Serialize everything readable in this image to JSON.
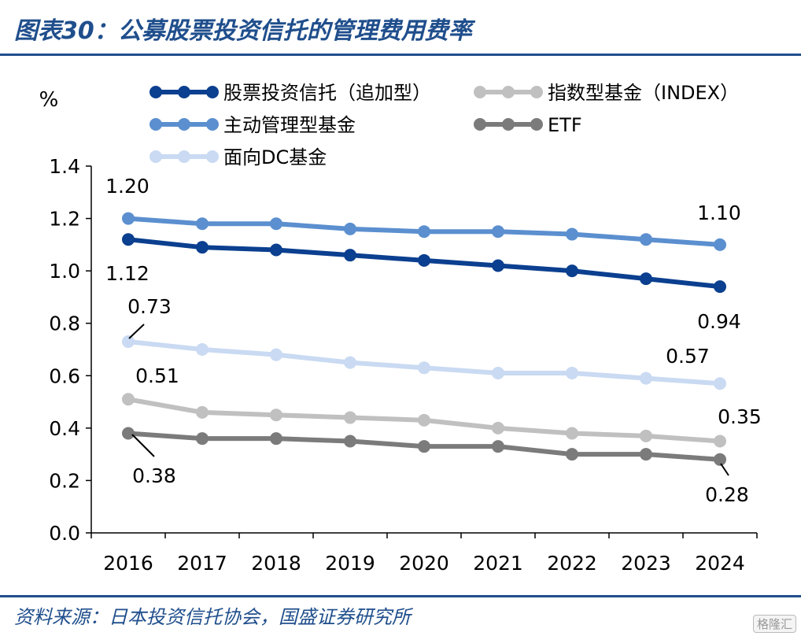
{
  "header": {
    "title": "图表30：公募股票投资信托的管理费用费率"
  },
  "footer": {
    "source": "资料来源：日本投资信托协会，国盛证券研究所",
    "watermark": "格隆汇"
  },
  "chart_data": {
    "type": "line",
    "ylabel": "%",
    "ylim": [
      0.0,
      1.4
    ],
    "yticks": [
      "0.0",
      "0.2",
      "0.4",
      "0.6",
      "0.8",
      "1.0",
      "1.2",
      "1.4"
    ],
    "categories": [
      "2016",
      "2017",
      "2018",
      "2019",
      "2020",
      "2021",
      "2022",
      "2023",
      "2024"
    ],
    "legend_position": "top",
    "grid": false,
    "series": [
      {
        "name": "股票投资信托（追加型）",
        "color": "#0b3f8f",
        "values": [
          1.12,
          1.09,
          1.08,
          1.06,
          1.04,
          1.02,
          1.0,
          0.97,
          0.94
        ]
      },
      {
        "name": "指数型基金（INDEX）",
        "color": "#c0c0c0",
        "values": [
          0.51,
          0.46,
          0.45,
          0.44,
          0.43,
          0.4,
          0.38,
          0.37,
          0.35
        ]
      },
      {
        "name": "主动管理型基金",
        "color": "#5b8fcf",
        "values": [
          1.2,
          1.18,
          1.18,
          1.16,
          1.15,
          1.15,
          1.14,
          1.12,
          1.1
        ]
      },
      {
        "name": "ETF",
        "color": "#7b7b7b",
        "values": [
          0.38,
          0.36,
          0.36,
          0.35,
          0.33,
          0.33,
          0.3,
          0.3,
          0.28
        ]
      },
      {
        "name": "面向DC基金",
        "color": "#c9daf2",
        "values": [
          0.73,
          0.7,
          0.68,
          0.65,
          0.63,
          0.61,
          0.61,
          0.59,
          0.57
        ]
      }
    ],
    "annotations": [
      {
        "text": "1.20",
        "series": 2,
        "index": 0
      },
      {
        "text": "1.12",
        "series": 0,
        "index": 0
      },
      {
        "text": "0.73",
        "series": 4,
        "index": 0
      },
      {
        "text": "0.51",
        "series": 1,
        "index": 0
      },
      {
        "text": "0.38",
        "series": 3,
        "index": 0
      },
      {
        "text": "1.10",
        "series": 2,
        "index": 8
      },
      {
        "text": "0.94",
        "series": 0,
        "index": 8
      },
      {
        "text": "0.57",
        "series": 4,
        "index": 8
      },
      {
        "text": "0.35",
        "series": 1,
        "index": 8
      },
      {
        "text": "0.28",
        "series": 3,
        "index": 8
      }
    ]
  }
}
